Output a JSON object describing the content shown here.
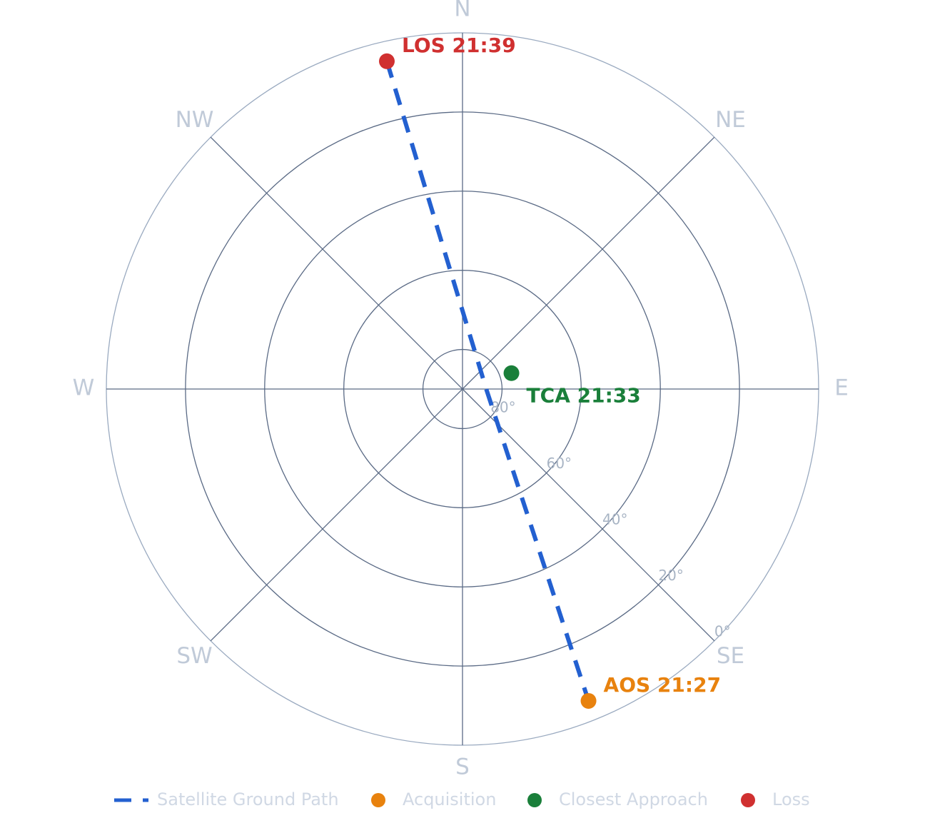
{
  "chart_data": {
    "type": "polar",
    "thetaticks": [
      {
        "value": 0,
        "label": "N"
      },
      {
        "value": 45,
        "label": "NE"
      },
      {
        "value": 90,
        "label": "E"
      },
      {
        "value": 135,
        "label": "SE"
      },
      {
        "value": 180,
        "label": "S"
      },
      {
        "value": 225,
        "label": "SW"
      },
      {
        "value": 270,
        "label": "W"
      },
      {
        "value": 315,
        "label": "NW"
      }
    ],
    "rlim": [
      90,
      0
    ],
    "rticks": [
      {
        "value": 80,
        "label": "80°"
      },
      {
        "value": 60,
        "label": "60°"
      },
      {
        "value": 40,
        "label": "40°"
      },
      {
        "value": 20,
        "label": "20°"
      },
      {
        "value": 0,
        "label": "0°"
      }
    ],
    "grid": true,
    "legend": "bottom",
    "series": [
      {
        "name": "Satellite Ground Path",
        "mode": "dashed-line",
        "color": "#2360d0",
        "theta": [
          347,
          90,
          158
        ],
        "r": [
          5,
          84,
          5
        ]
      },
      {
        "name": "Acquisition",
        "mode": "marker",
        "color": "#e8820e",
        "theta": [
          158
        ],
        "r": [
          5
        ],
        "annotation": "AOS  21:27"
      },
      {
        "name": "Closest Approach",
        "mode": "marker",
        "color": "#1a7f3a",
        "theta": [
          72
        ],
        "r": [
          77
        ],
        "annotation": "TCA  21:33"
      },
      {
        "name": "Loss",
        "mode": "marker",
        "color": "#d03030",
        "theta": [
          347
        ],
        "r": [
          5
        ],
        "annotation": "LOS  21:39"
      }
    ]
  }
}
